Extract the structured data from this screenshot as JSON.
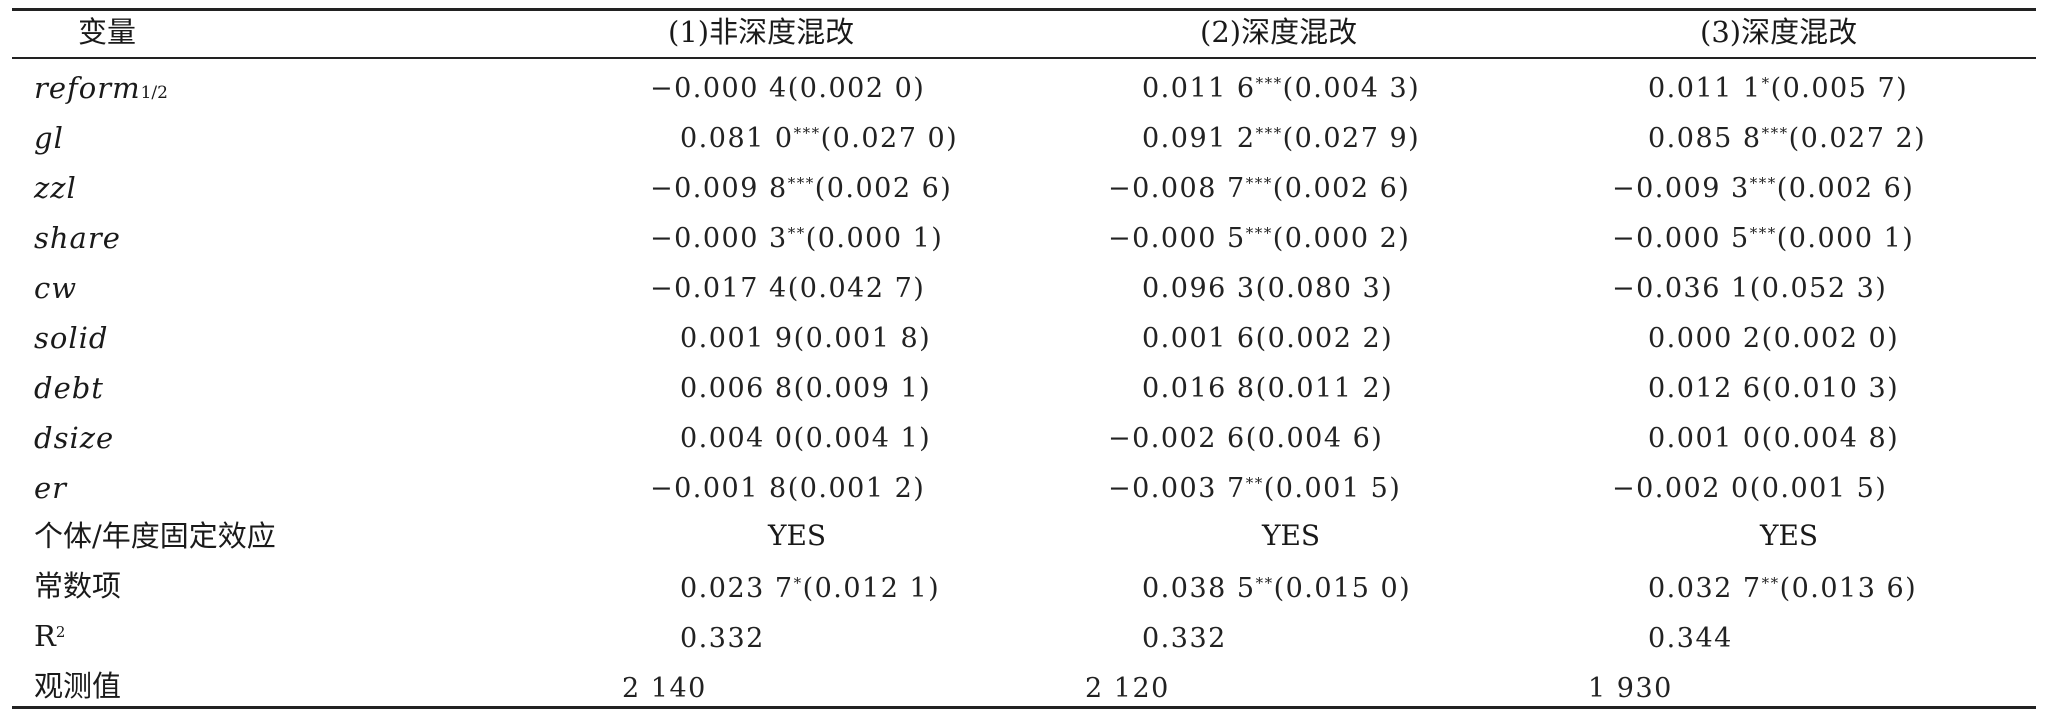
{
  "table": {
    "headers": [
      "变量",
      "(1)非深度混改",
      "(2)深度混改",
      "(3)深度混改"
    ],
    "rows": [
      {
        "label": "reform",
        "label_sub": "1/2",
        "italic": true,
        "c1": {
          "v": "−0.000 4",
          "sig": "",
          "se": "(0.002 0)"
        },
        "c2": {
          "v": "0.011 6",
          "sig": "***",
          "se": "(0.004 3)"
        },
        "c3": {
          "v": "0.011 1",
          "sig": "*",
          "se": "(0.005 7)"
        }
      },
      {
        "label": "gl",
        "italic": true,
        "c1": {
          "v": "0.081 0",
          "sig": "***",
          "se": "(0.027 0)"
        },
        "c2": {
          "v": "0.091 2",
          "sig": "***",
          "se": "(0.027 9)"
        },
        "c3": {
          "v": "0.085 8",
          "sig": "***",
          "se": "(0.027 2)"
        }
      },
      {
        "label": "zzl",
        "italic": true,
        "c1": {
          "v": "−0.009 8",
          "sig": "***",
          "se": "(0.002 6)"
        },
        "c2": {
          "v": "−0.008 7",
          "sig": "***",
          "se": "(0.002 6)"
        },
        "c3": {
          "v": "−0.009 3",
          "sig": "***",
          "se": "(0.002 6)"
        }
      },
      {
        "label": "share",
        "italic": true,
        "c1": {
          "v": "−0.000 3",
          "sig": "**",
          "se": "(0.000 1)"
        },
        "c2": {
          "v": "−0.000 5",
          "sig": "***",
          "se": "(0.000 2)"
        },
        "c3": {
          "v": "−0.000 5",
          "sig": "***",
          "se": "(0.000 1)"
        }
      },
      {
        "label": "cw",
        "italic": true,
        "c1": {
          "v": "−0.017 4",
          "sig": "",
          "se": "(0.042 7)"
        },
        "c2": {
          "v": "0.096 3",
          "sig": "",
          "se": "(0.080 3)"
        },
        "c3": {
          "v": "−0.036 1",
          "sig": "",
          "se": "(0.052 3)"
        }
      },
      {
        "label": "solid",
        "italic": true,
        "c1": {
          "v": "0.001 9",
          "sig": "",
          "se": "(0.001 8)"
        },
        "c2": {
          "v": "0.001 6",
          "sig": "",
          "se": "(0.002 2)"
        },
        "c3": {
          "v": "0.000 2",
          "sig": "",
          "se": "(0.002 0)"
        }
      },
      {
        "label": "debt",
        "italic": true,
        "c1": {
          "v": "0.006 8",
          "sig": "",
          "se": "(0.009 1)"
        },
        "c2": {
          "v": "0.016 8",
          "sig": "",
          "se": "(0.011 2)"
        },
        "c3": {
          "v": "0.012 6",
          "sig": "",
          "se": "(0.010 3)"
        }
      },
      {
        "label": "dsize",
        "italic": true,
        "c1": {
          "v": "0.004 0",
          "sig": "",
          "se": "(0.004 1)"
        },
        "c2": {
          "v": "−0.002 6",
          "sig": "",
          "se": "(0.004 6)"
        },
        "c3": {
          "v": "0.001 0",
          "sig": "",
          "se": "(0.004 8)"
        }
      },
      {
        "label": "er",
        "italic": true,
        "c1": {
          "v": "−0.001 8",
          "sig": "",
          "se": "(0.001 2)"
        },
        "c2": {
          "v": "−0.003 7",
          "sig": "**",
          "se": "(0.001 5)"
        },
        "c3": {
          "v": "−0.002 0",
          "sig": "",
          "se": "(0.001 5)"
        }
      },
      {
        "label": "个体/年度固定效应",
        "italic": false,
        "yes": true,
        "c1": {
          "v": "YES",
          "sig": "",
          "se": ""
        },
        "c2": {
          "v": "YES",
          "sig": "",
          "se": ""
        },
        "c3": {
          "v": "YES",
          "sig": "",
          "se": ""
        }
      },
      {
        "label": "常数项",
        "italic": false,
        "c1": {
          "v": "0.023 7",
          "sig": "*",
          "se": "(0.012 1)"
        },
        "c2": {
          "v": "0.038 5",
          "sig": "**",
          "se": "(0.015 0)"
        },
        "c3": {
          "v": "0.032 7",
          "sig": "**",
          "se": "(0.013 6)"
        }
      },
      {
        "label": "R",
        "label_sup": "2",
        "italic": false,
        "c1": {
          "v": "0.332",
          "sig": "",
          "se": ""
        },
        "c2": {
          "v": "0.332",
          "sig": "",
          "se": ""
        },
        "c3": {
          "v": "0.344",
          "sig": "",
          "se": ""
        }
      },
      {
        "label": "观测值",
        "italic": false,
        "c1": {
          "v": "2 140",
          "sig": "",
          "se": ""
        },
        "c2": {
          "v": "2 120",
          "sig": "",
          "se": ""
        },
        "c3": {
          "v": "1 930",
          "sig": "",
          "se": ""
        }
      }
    ]
  }
}
